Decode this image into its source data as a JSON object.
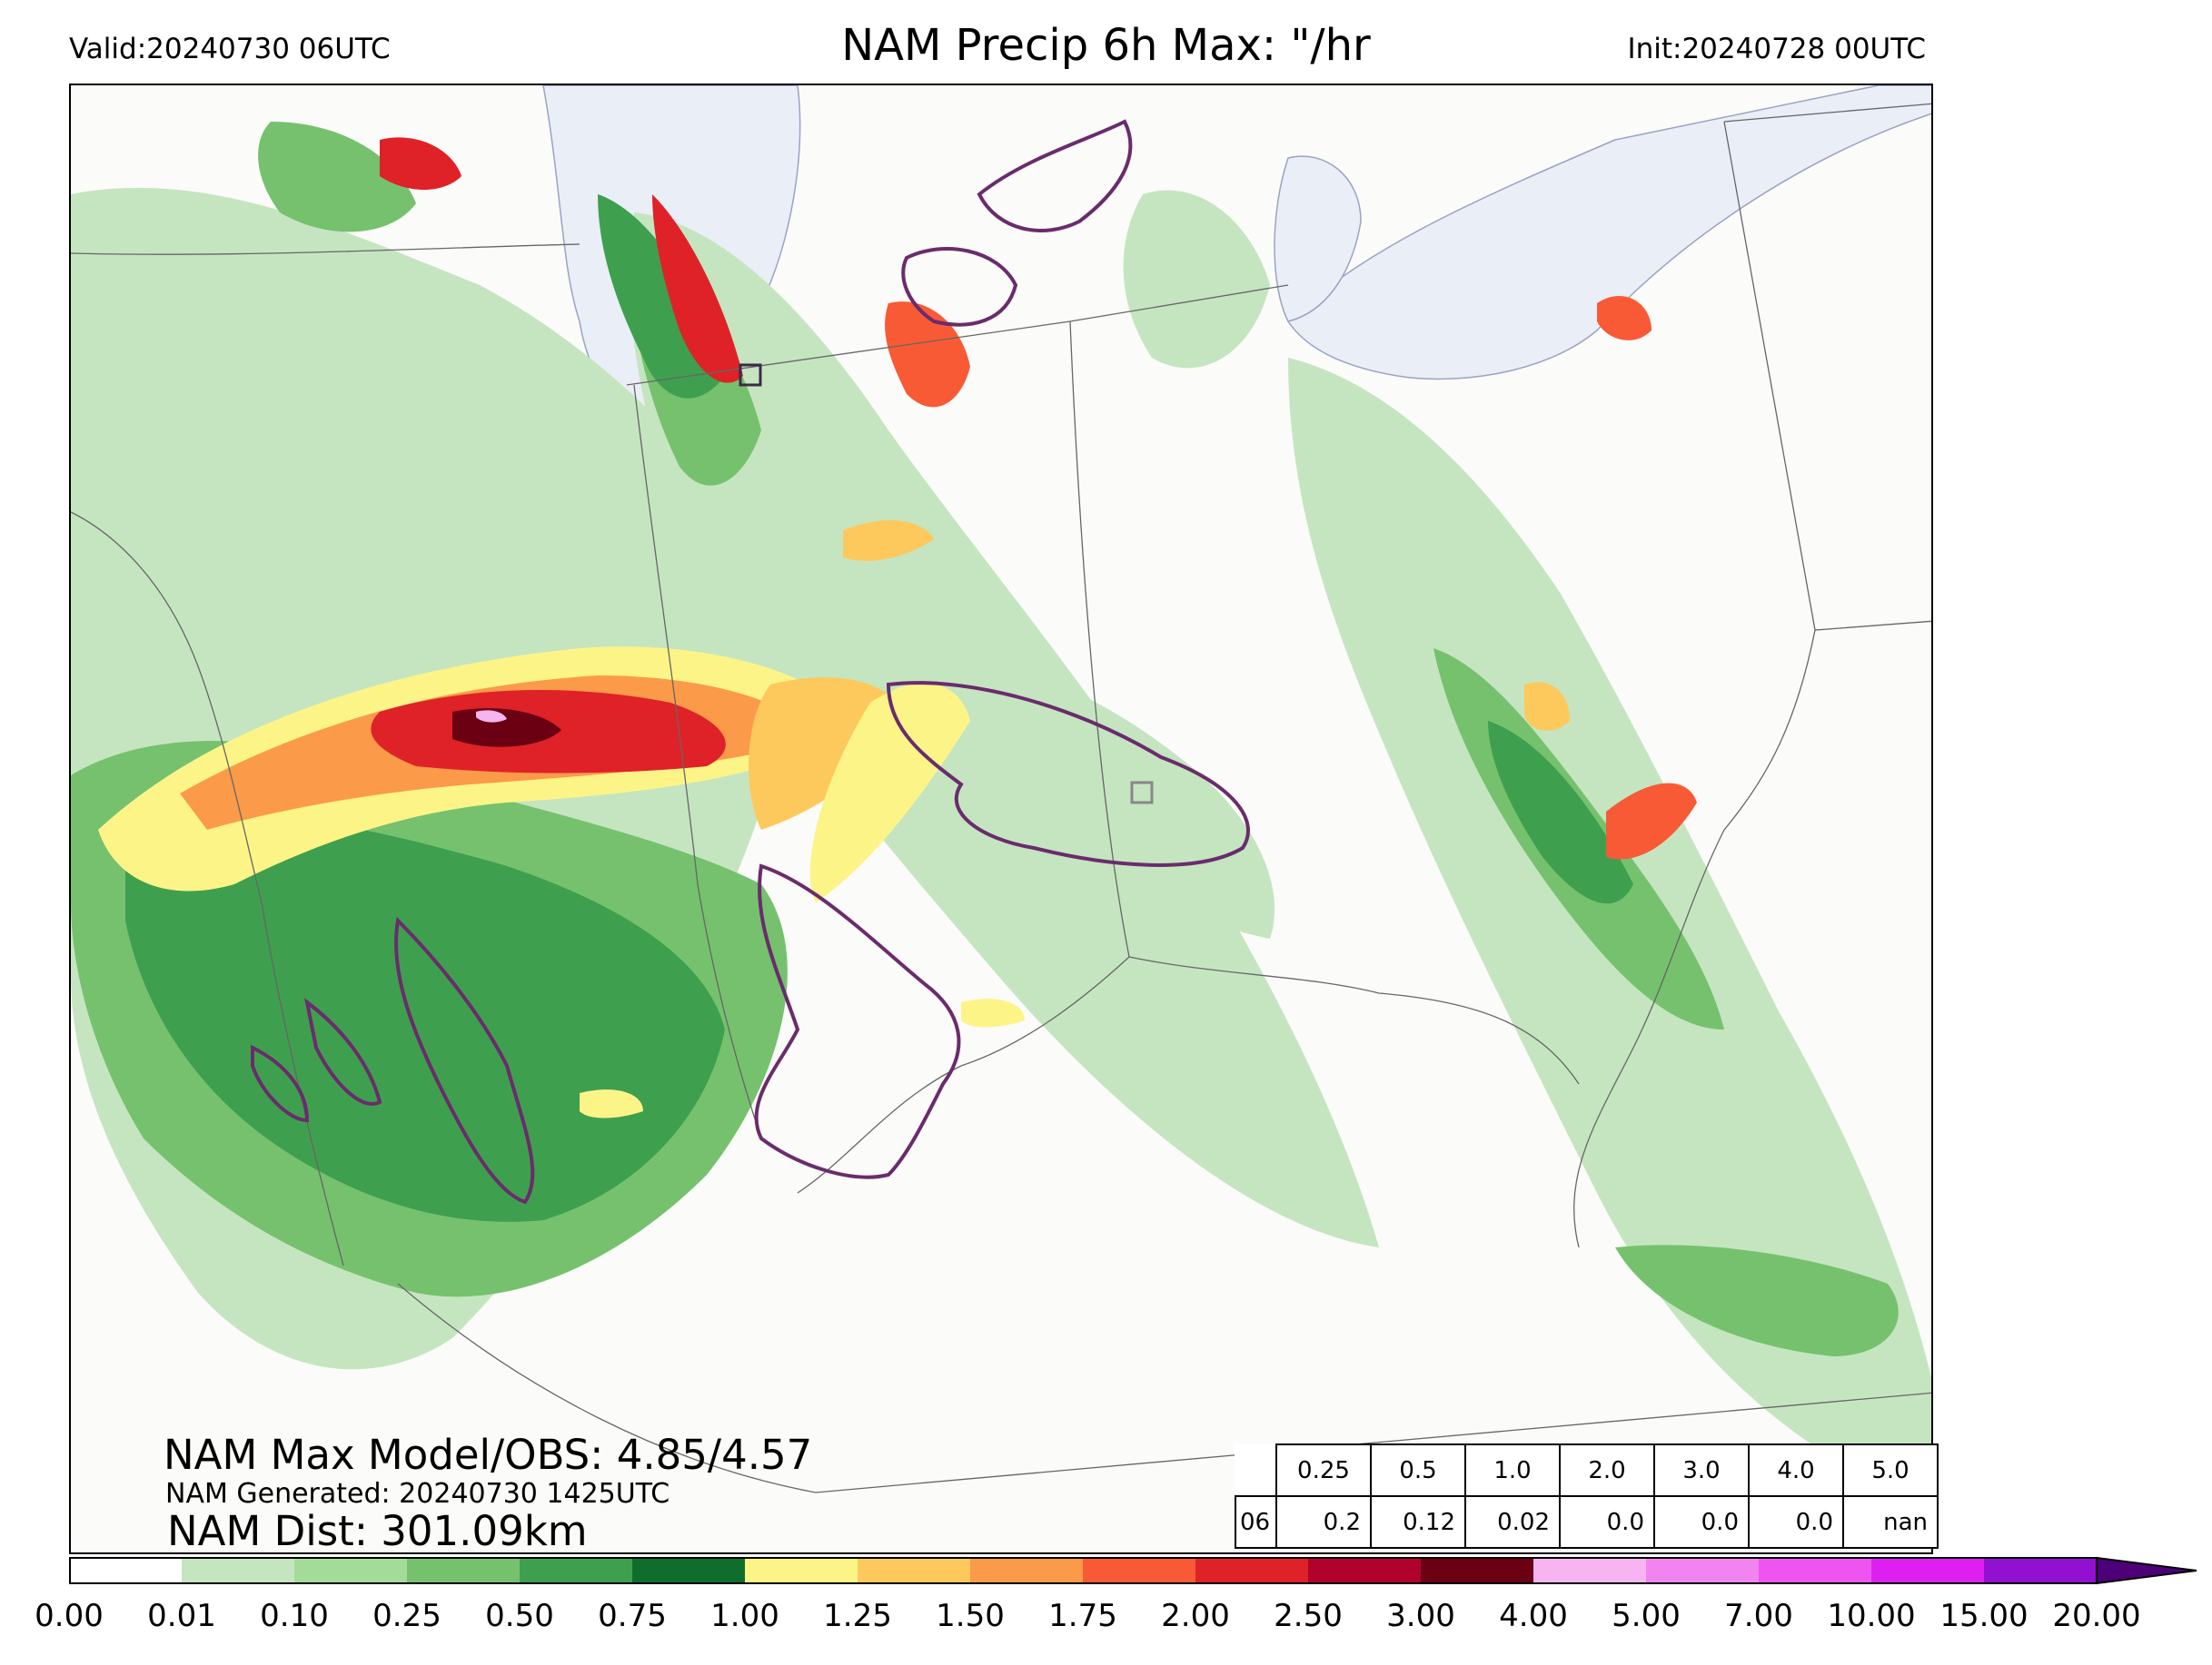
{
  "header": {
    "valid": "Valid:20240730 06UTC",
    "title": "NAM Precip 6h Max: \"/hr",
    "init": "Init:20240728 00UTC"
  },
  "stats": {
    "max_line": "NAM Max Model/OBS: 4.85/4.57",
    "generated": "NAM Generated: 20240730 1425UTC",
    "dist": "NAM Dist: 301.09km"
  },
  "threshold_table": {
    "hour": "06",
    "thresholds": [
      "0.25",
      "0.5",
      "1.0",
      "2.0",
      "3.0",
      "4.0",
      "5.0"
    ],
    "values": [
      "0.2",
      "0.12",
      "0.02",
      "0.0",
      "0.0",
      "0.0",
      "nan"
    ]
  },
  "colorbar": {
    "ticks": [
      "0.00",
      "0.01",
      "0.10",
      "0.25",
      "0.50",
      "0.75",
      "1.00",
      "1.25",
      "1.50",
      "1.75",
      "2.00",
      "2.50",
      "3.00",
      "4.00",
      "5.00",
      "7.00",
      "10.00",
      "15.00",
      "20.00"
    ],
    "colors": [
      "#ffffff",
      "#c5e5c0",
      "#a3dc98",
      "#76c16e",
      "#3ea04e",
      "#0f6e2c",
      "#fdf488",
      "#fdc95c",
      "#fb9a48",
      "#f85a36",
      "#de2228",
      "#b0022c",
      "#6b0012",
      "#f6b4f0",
      "#f284f0",
      "#ee55f0",
      "#dd20f0",
      "#9210d0"
    ],
    "extend_color": "#4e0078"
  },
  "map_colors": {
    "background": "#fbfbf9",
    "lake": "#eaeef6",
    "state_lines": "#666666",
    "obs_contour": "#6a2c6c"
  }
}
